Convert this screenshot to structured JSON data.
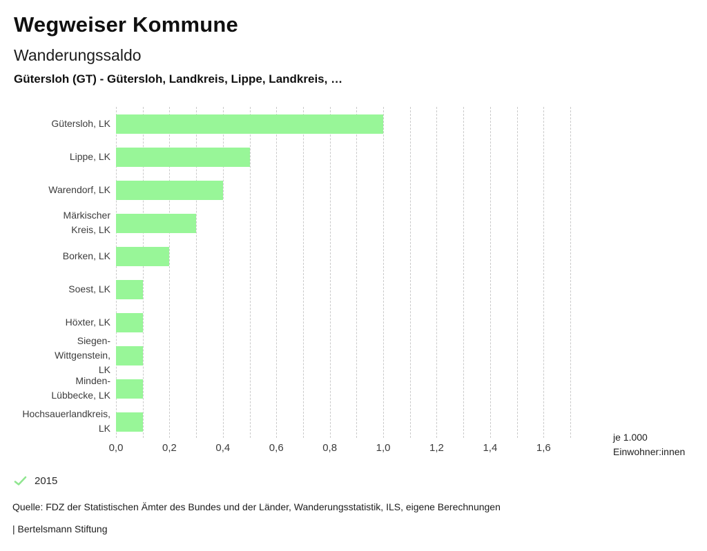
{
  "header": {
    "title": "Wegweiser Kommune",
    "subtitle": "Wanderungssaldo",
    "selection": "Gütersloh (GT) - Gütersloh, Landkreis, Lippe, Landkreis, …"
  },
  "chart_data": {
    "type": "bar",
    "orientation": "horizontal",
    "title": "Wanderungssaldo",
    "categories": [
      "Gütersloh, LK",
      "Lippe, LK",
      "Warendorf, LK",
      "Märkischer\nKreis, LK",
      "Borken, LK",
      "Soest, LK",
      "Höxter, LK",
      "Siegen-\nWittgenstein,\nLK",
      "Minden-\nLübbecke, LK",
      "Hochsauerlandkreis,\nLK"
    ],
    "series": [
      {
        "name": "2015",
        "values": [
          1.0,
          0.5,
          0.4,
          0.3,
          0.2,
          0.1,
          0.1,
          0.1,
          0.1,
          0.1
        ]
      }
    ],
    "xlabel": "je 1.000\nEinwohner:innen",
    "xlim": [
      0,
      1.7
    ],
    "grid": true,
    "grid_step": 0.1,
    "ticks": [
      {
        "value": 0.0,
        "label": "0,0"
      },
      {
        "value": 0.2,
        "label": "0,2"
      },
      {
        "value": 0.4,
        "label": "0,4"
      },
      {
        "value": 0.6,
        "label": "0,6"
      },
      {
        "value": 0.8,
        "label": "0,8"
      },
      {
        "value": 1.0,
        "label": "1,0"
      },
      {
        "value": 1.2,
        "label": "1,2"
      },
      {
        "value": 1.4,
        "label": "1,4"
      },
      {
        "value": 1.6,
        "label": "1,6"
      }
    ],
    "bar_color": "#98f698",
    "grid_color": "#c9c9c9",
    "legend_position": "bottom-left"
  },
  "legend": {
    "year_label": "2015",
    "check_color": "#90e690"
  },
  "footer": {
    "source": "Quelle: FDZ der Statistischen Ämter des Bundes und der Länder, Wanderungsstatistik, ILS, eigene Berechnungen",
    "brand": "| Bertelsmann Stiftung"
  }
}
